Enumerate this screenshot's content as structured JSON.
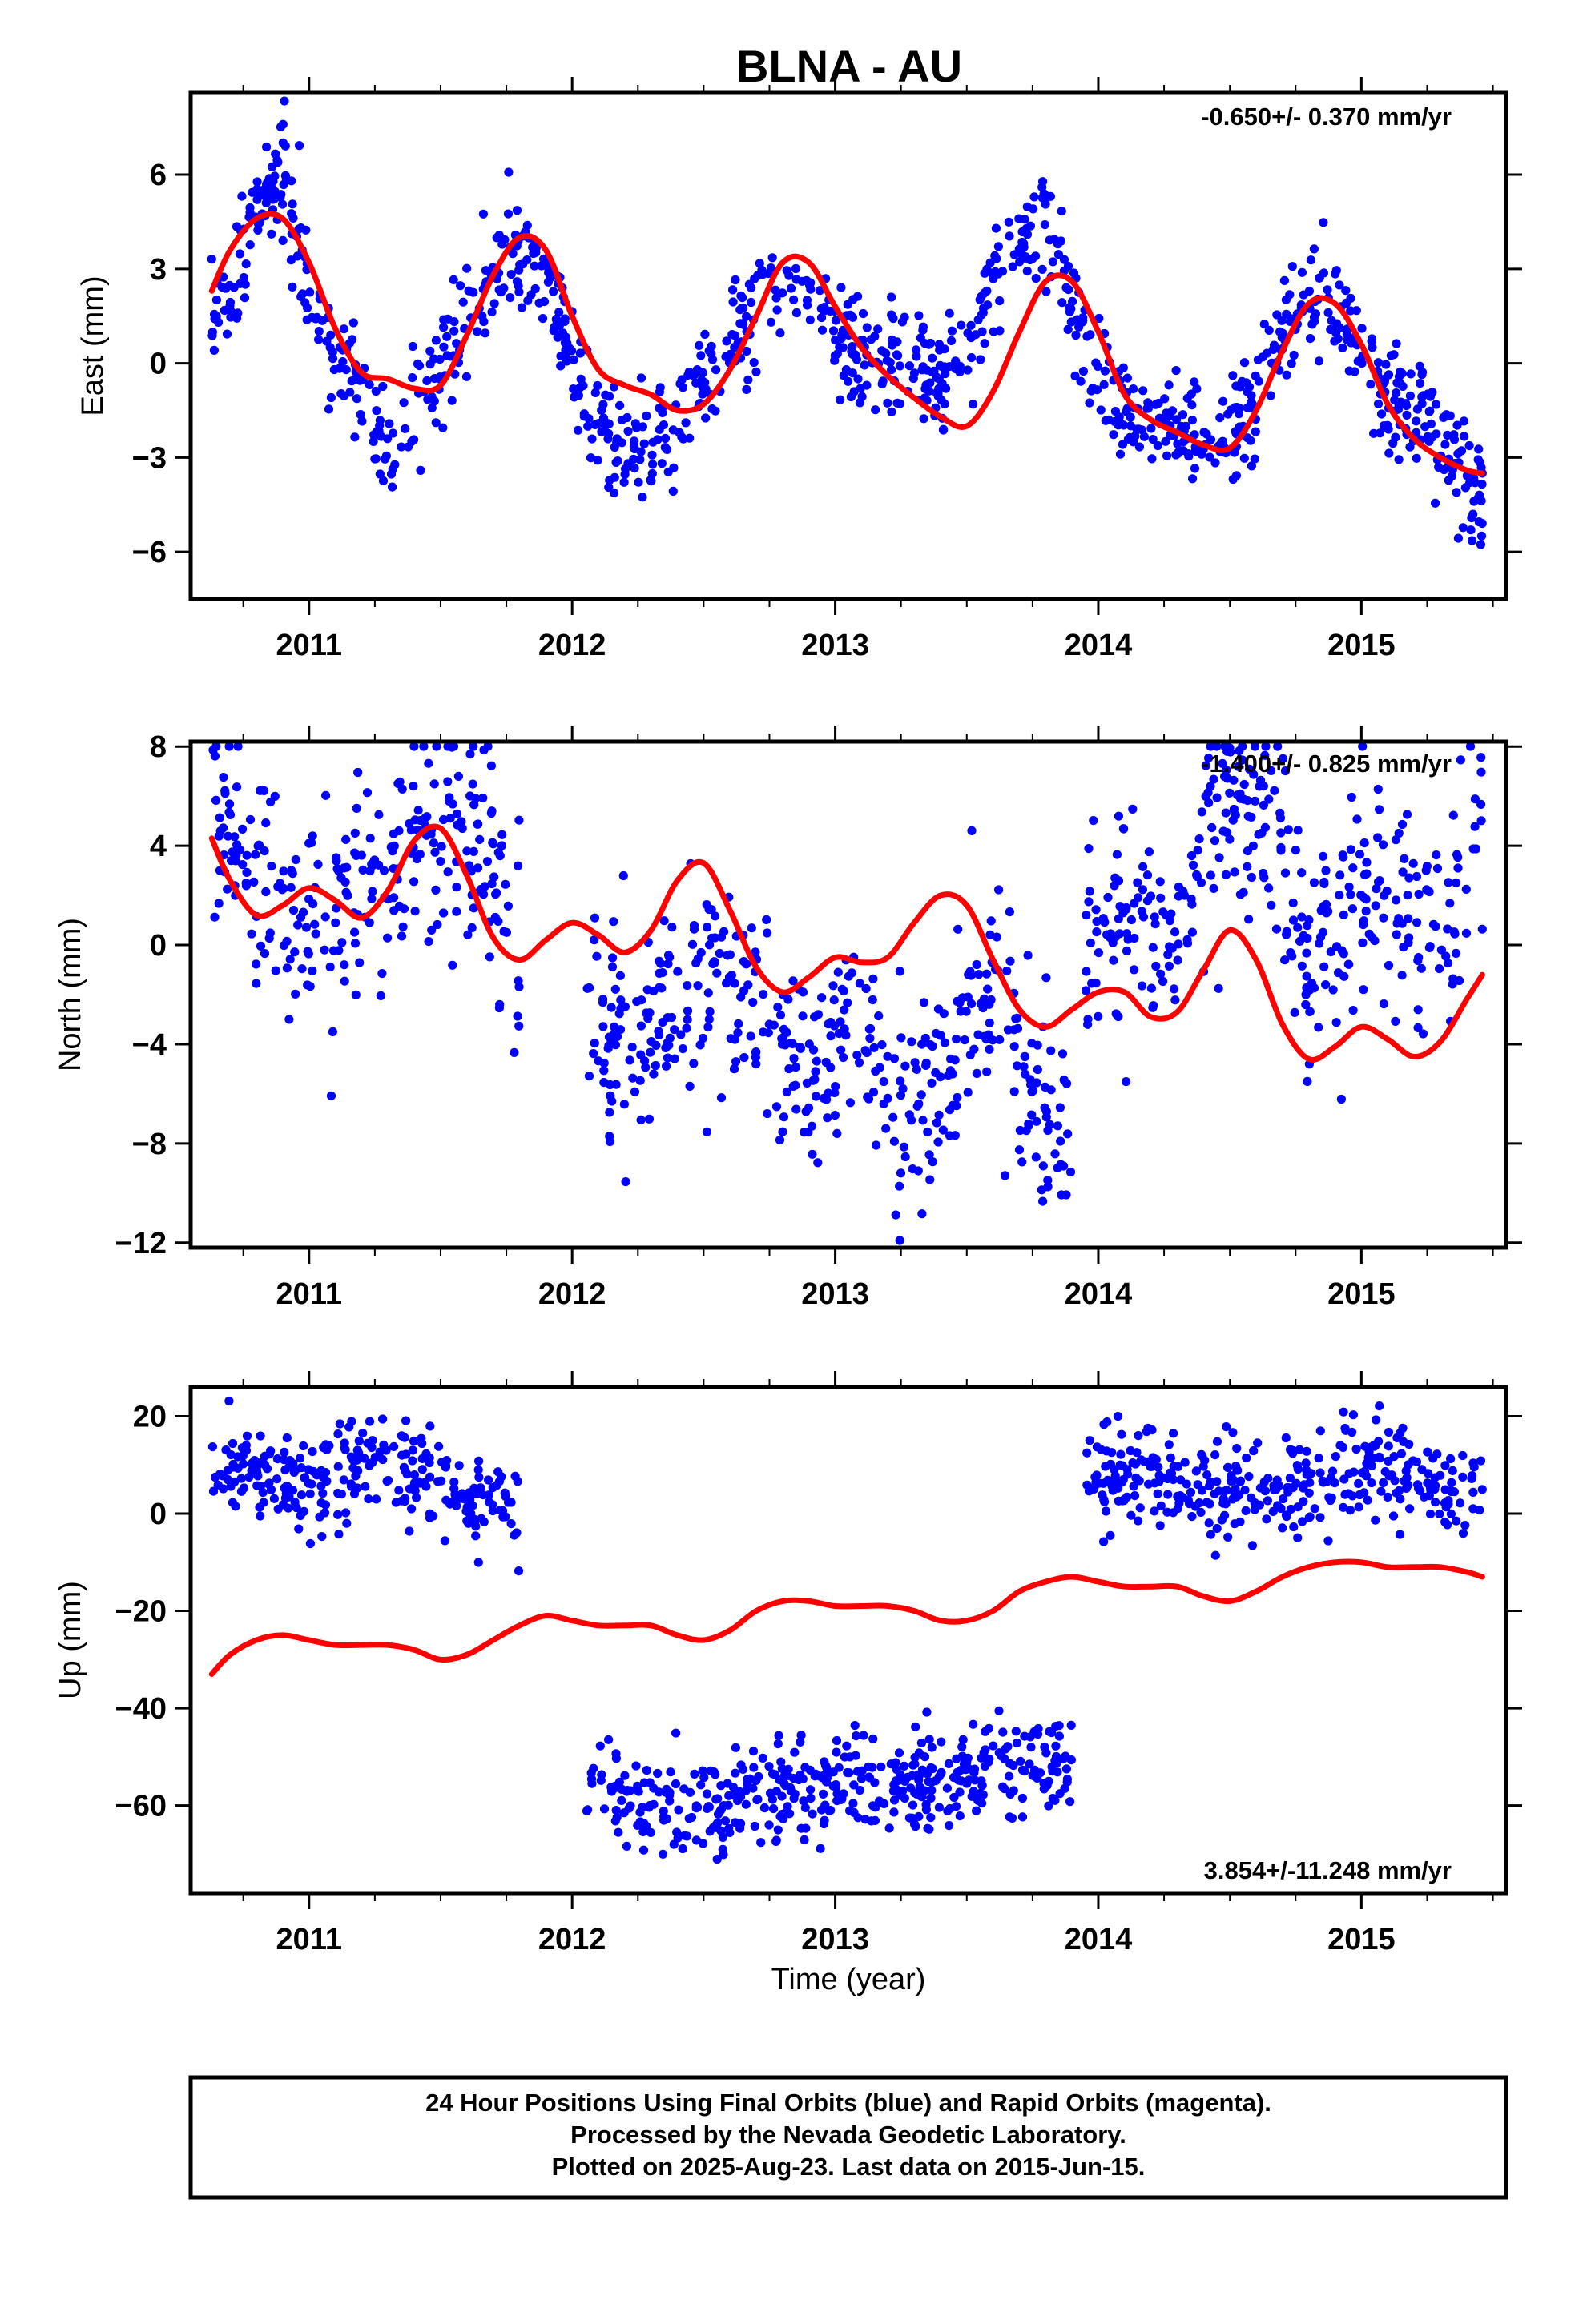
{
  "colors": {
    "data": "#0000ff",
    "model": "#ff0000",
    "frame": "#000000"
  },
  "chart_data": [
    {
      "type": "scatter",
      "title": "BLNA - AU",
      "xlabel": "",
      "ylabel": "East (mm)",
      "xlim": [
        2010.55,
        2015.55
      ],
      "ylim": [
        -7.5,
        8.6
      ],
      "xticks": [
        2011,
        2012,
        2013,
        2014,
        2015
      ],
      "yticks": [
        -6,
        -3,
        0,
        3,
        6
      ],
      "rate_label": "-0.650+/- 0.370 mm/yr",
      "rate_position": "top-right",
      "data_range": [
        2010.63,
        2015.46
      ],
      "data_color": "blue",
      "model": {
        "color": "red",
        "x": [
          2010.63,
          2010.7,
          2010.8,
          2010.9,
          2011.0,
          2011.1,
          2011.2,
          2011.3,
          2011.4,
          2011.5,
          2011.6,
          2011.7,
          2011.8,
          2011.9,
          2012.0,
          2012.1,
          2012.2,
          2012.3,
          2012.4,
          2012.5,
          2012.6,
          2012.7,
          2012.8,
          2012.9,
          2013.0,
          2013.1,
          2013.2,
          2013.3,
          2013.4,
          2013.5,
          2013.6,
          2013.7,
          2013.8,
          2013.9,
          2014.0,
          2014.1,
          2014.2,
          2014.3,
          2014.4,
          2014.5,
          2014.6,
          2014.7,
          2014.8,
          2014.9,
          2015.0,
          2015.1,
          2015.2,
          2015.3,
          2015.4,
          2015.46
        ],
        "y": [
          2.3,
          3.6,
          4.6,
          4.6,
          3.2,
          1.1,
          -0.3,
          -0.5,
          -0.8,
          -0.7,
          0.9,
          2.8,
          4.0,
          3.6,
          1.5,
          -0.2,
          -0.7,
          -1.0,
          -1.5,
          -1.3,
          -0.2,
          1.5,
          3.2,
          3.2,
          1.8,
          0.5,
          -0.4,
          -1.1,
          -1.7,
          -2.0,
          -0.9,
          1.0,
          2.6,
          2.6,
          1.0,
          -1.0,
          -1.8,
          -2.2,
          -2.6,
          -2.7,
          -1.5,
          0.4,
          1.9,
          1.9,
          0.6,
          -1.3,
          -2.4,
          -3.0,
          -3.4,
          -3.5
        ]
      },
      "observations": {
        "x": [
          2010.63,
          2010.7,
          2010.8,
          2010.9,
          2011.0,
          2011.1,
          2011.2,
          2011.3,
          2011.4,
          2011.5,
          2011.6,
          2011.7,
          2011.8,
          2011.9,
          2012.0,
          2012.1,
          2012.2,
          2012.3,
          2012.4,
          2012.5,
          2012.6,
          2012.7,
          2012.8,
          2012.9,
          2013.0,
          2013.1,
          2013.2,
          2013.3,
          2013.4,
          2013.5,
          2013.6,
          2013.7,
          2013.8,
          2013.9,
          2014.0,
          2014.1,
          2014.2,
          2014.3,
          2014.4,
          2014.5,
          2014.6,
          2014.7,
          2014.8,
          2014.9,
          2015.0,
          2015.1,
          2015.2,
          2015.3,
          2015.4,
          2015.46
        ],
        "y": [
          1.5,
          2.5,
          4.8,
          5.8,
          2.5,
          0.0,
          -1.0,
          -2.5,
          -1.5,
          0.0,
          1.5,
          3.0,
          3.5,
          3.0,
          0.0,
          -1.5,
          -2.5,
          -2.5,
          -2.0,
          -0.5,
          0.5,
          2.0,
          2.5,
          2.0,
          1.0,
          0.5,
          0.0,
          0.0,
          -0.5,
          0.5,
          2.0,
          4.0,
          4.5,
          2.0,
          -0.5,
          -1.5,
          -1.5,
          -2.0,
          -3.0,
          -2.5,
          -1.0,
          1.0,
          2.5,
          1.5,
          0.5,
          -1.0,
          -1.5,
          -2.0,
          -3.5,
          -4.5
        ]
      }
    },
    {
      "type": "scatter",
      "title": "",
      "xlabel": "",
      "ylabel": "North (mm)",
      "xlim": [
        2010.55,
        2015.55
      ],
      "ylim": [
        -12.2,
        8.2
      ],
      "xticks": [
        2011,
        2012,
        2013,
        2014,
        2015
      ],
      "yticks": [
        -12,
        -8,
        -4,
        0,
        4,
        8
      ],
      "rate_label": "-1.400+/- 0.825 mm/yr",
      "rate_position": "top-right",
      "data_range": [
        2010.63,
        2015.46
      ],
      "data_color": "blue",
      "model": {
        "color": "red",
        "x": [
          2010.63,
          2010.7,
          2010.8,
          2010.9,
          2011.0,
          2011.1,
          2011.2,
          2011.3,
          2011.4,
          2011.5,
          2011.6,
          2011.7,
          2011.8,
          2011.9,
          2012.0,
          2012.1,
          2012.2,
          2012.3,
          2012.4,
          2012.5,
          2012.6,
          2012.7,
          2012.8,
          2012.9,
          2013.0,
          2013.1,
          2013.2,
          2013.3,
          2013.4,
          2013.5,
          2013.6,
          2013.7,
          2013.8,
          2013.9,
          2014.0,
          2014.1,
          2014.2,
          2014.3,
          2014.4,
          2014.5,
          2014.6,
          2014.7,
          2014.8,
          2014.9,
          2015.0,
          2015.1,
          2015.2,
          2015.3,
          2015.4,
          2015.46
        ],
        "y": [
          4.3,
          2.6,
          1.2,
          1.6,
          2.3,
          1.8,
          1.1,
          2.2,
          4.2,
          4.7,
          2.8,
          0.3,
          -0.6,
          0.2,
          0.9,
          0.4,
          -0.3,
          0.6,
          2.6,
          3.3,
          1.4,
          -0.9,
          -1.9,
          -1.3,
          -0.5,
          -0.7,
          -0.5,
          0.9,
          2.0,
          1.6,
          -0.6,
          -2.6,
          -3.3,
          -2.6,
          -1.9,
          -1.9,
          -2.9,
          -2.7,
          -1.0,
          0.6,
          -0.6,
          -3.2,
          -4.6,
          -4.1,
          -3.3,
          -3.8,
          -4.5,
          -3.9,
          -2.2,
          -1.2
        ]
      },
      "observations": {
        "segments": [
          {
            "x": [
              2010.63,
              2010.7,
              2010.8,
              2010.9,
              2011.0,
              2011.1,
              2011.2,
              2011.3,
              2011.4,
              2011.5,
              2011.6,
              2011.7,
              2011.8
            ],
            "y": [
              6.0,
              4.5,
              3.0,
              2.0,
              1.5,
              2.0,
              2.5,
              2.5,
              3.5,
              4.5,
              5.0,
              3.0,
              0.0
            ]
          },
          {
            "x": [
              2012.05,
              2012.2,
              2012.4,
              2012.5,
              2012.6,
              2012.7,
              2012.8,
              2012.9,
              2013.0,
              2013.1,
              2013.2,
              2013.3,
              2013.4,
              2013.5,
              2013.6,
              2013.7,
              2013.8,
              2013.9
            ],
            "y": [
              -3.0,
              -3.5,
              -2.5,
              -1.0,
              -1.5,
              -3.5,
              -5.0,
              -5.5,
              -4.0,
              -3.0,
              -6.0,
              -6.0,
              -4.5,
              -3.0,
              -2.5,
              -4.0,
              -7.0,
              -9.0
            ]
          },
          {
            "x": [
              2013.95,
              2014.1,
              2014.2,
              2014.3,
              2014.4,
              2014.5,
              2014.6,
              2014.7,
              2014.8,
              2014.9,
              2015.0,
              2015.1,
              2015.2,
              2015.3,
              2015.4,
              2015.46
            ],
            "y": [
              0.5,
              1.5,
              1.0,
              1.0,
              4.0,
              6.0,
              5.5,
              3.5,
              -1.0,
              0.0,
              1.5,
              1.5,
              0.0,
              0.5,
              3.0,
              5.0
            ]
          }
        ]
      }
    },
    {
      "type": "scatter",
      "title": "",
      "xlabel": "Time (year)",
      "ylabel": "Up (mm)",
      "xlim": [
        2010.55,
        2015.55
      ],
      "ylim": [
        -78,
        26
      ],
      "xticks": [
        2011,
        2012,
        2013,
        2014,
        2015
      ],
      "yticks": [
        -60,
        -40,
        -20,
        0,
        20
      ],
      "rate_label": "3.854+/-11.248 mm/yr",
      "rate_position": "bottom-right",
      "data_range": [
        2010.63,
        2015.46
      ],
      "data_color": "blue",
      "model": {
        "color": "red",
        "x": [
          2010.63,
          2010.7,
          2010.8,
          2010.9,
          2011.0,
          2011.1,
          2011.2,
          2011.3,
          2011.4,
          2011.5,
          2011.6,
          2011.7,
          2011.8,
          2011.9,
          2012.0,
          2012.1,
          2012.2,
          2012.3,
          2012.4,
          2012.5,
          2012.6,
          2012.7,
          2012.8,
          2012.9,
          2013.0,
          2013.1,
          2013.2,
          2013.3,
          2013.4,
          2013.5,
          2013.6,
          2013.7,
          2013.8,
          2013.9,
          2014.0,
          2014.1,
          2014.2,
          2014.3,
          2014.4,
          2014.5,
          2014.6,
          2014.7,
          2014.8,
          2014.9,
          2015.0,
          2015.1,
          2015.2,
          2015.3,
          2015.4,
          2015.46
        ],
        "y": [
          -33,
          -29,
          -26,
          -25,
          -26,
          -27,
          -27,
          -27,
          -28,
          -30,
          -29,
          -26,
          -23,
          -21,
          -22,
          -23,
          -23,
          -23,
          -25,
          -26,
          -24,
          -20,
          -18,
          -18,
          -19,
          -19,
          -19,
          -20,
          -22,
          -22,
          -20,
          -16,
          -14,
          -13,
          -14,
          -15,
          -15,
          -15,
          -17,
          -18,
          -16,
          -13,
          -11,
          -10,
          -10,
          -11,
          -11,
          -11,
          -12,
          -13
        ]
      },
      "observations": {
        "segments": [
          {
            "x": [
              2010.63,
              2010.75,
              2010.9,
              2011.05,
              2011.2,
              2011.35,
              2011.5,
              2011.65,
              2011.8
            ],
            "y": [
              8,
              8,
              7,
              6,
              10,
              8,
              5,
              2,
              0
            ]
          },
          {
            "x": [
              2012.05,
              2012.2,
              2012.35,
              2012.5,
              2012.65,
              2012.8,
              2012.95,
              2013.1,
              2013.25,
              2013.4,
              2013.55,
              2013.7,
              2013.9
            ],
            "y": [
              -58,
              -58,
              -60,
              -61,
              -59,
              -56,
              -56,
              -53,
              -56,
              -54,
              -54,
              -52,
              -52
            ]
          },
          {
            "x": [
              2013.95,
              2014.1,
              2014.25,
              2014.4,
              2014.55,
              2014.7,
              2014.85,
              2015.0,
              2015.1,
              2015.25,
              2015.4,
              2015.46
            ],
            "y": [
              8,
              7,
              8,
              4,
              5,
              4,
              5,
              8,
              12,
              7,
              5,
              3
            ]
          }
        ]
      }
    }
  ],
  "footer": {
    "line1": "24 Hour Positions Using Final Orbits (blue) and Rapid Orbits (magenta).",
    "line2": "Processed by the Nevada Geodetic Laboratory.",
    "line3": "Plotted on 2025-Aug-23. Last data on 2015-Jun-15."
  }
}
